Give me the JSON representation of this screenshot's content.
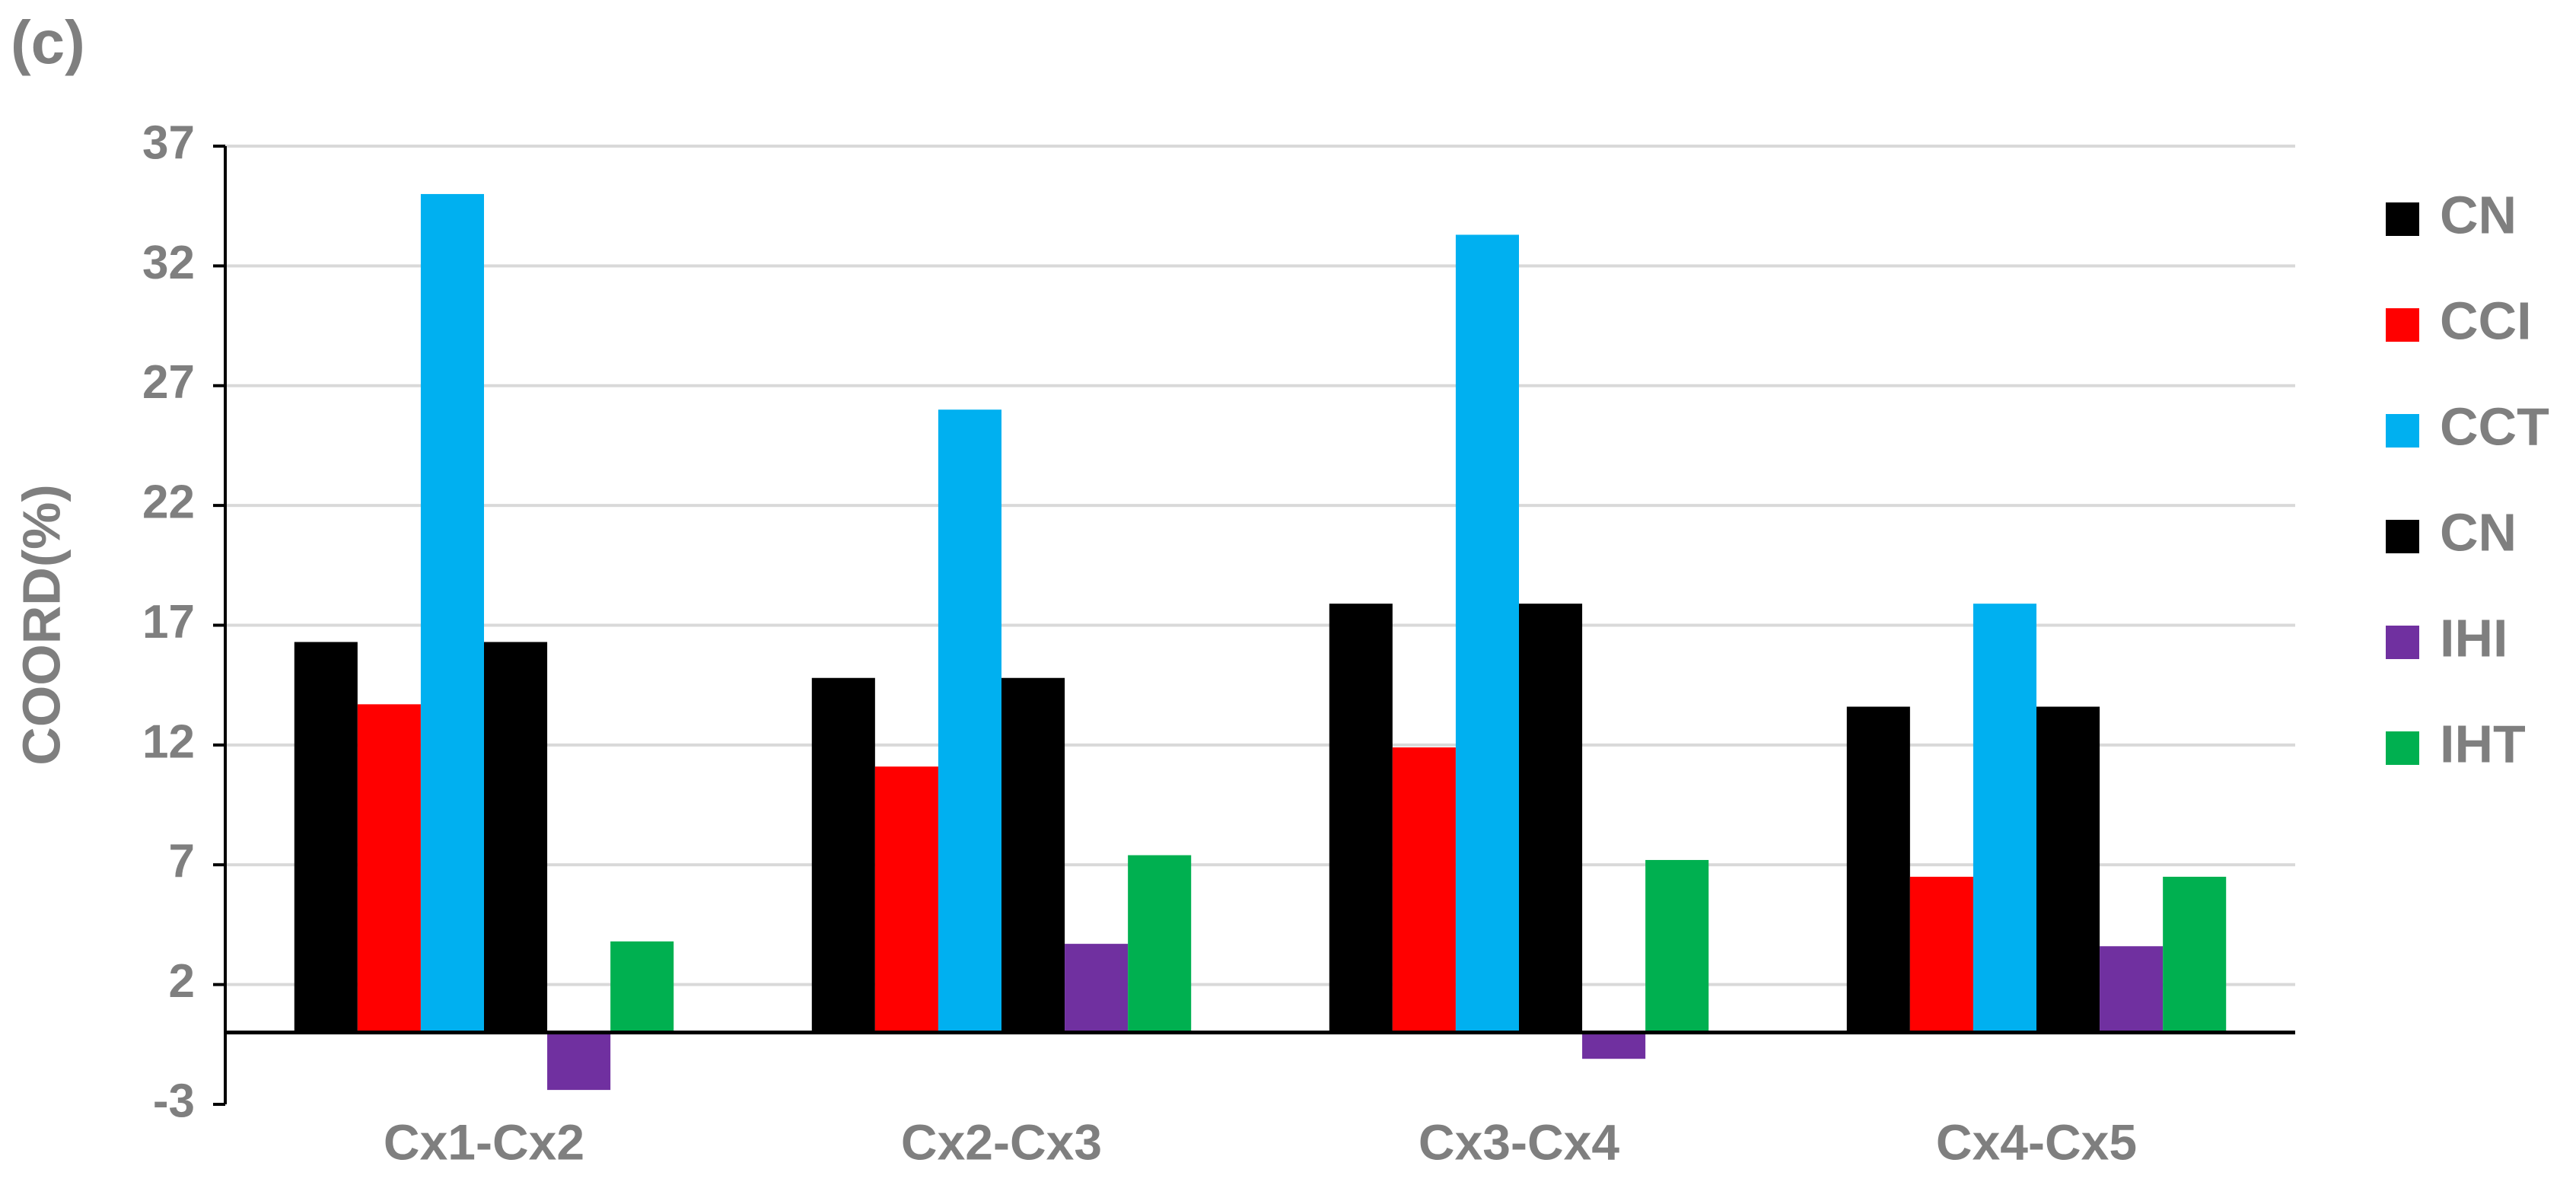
{
  "chart_data": {
    "type": "bar",
    "panel_label": "(c)",
    "y_label": "COORD(%)",
    "categories": [
      "Cx1-Cx2",
      "Cx2-Cx3",
      "Cx3-Cx4",
      "Cx4-Cx5"
    ],
    "series": [
      {
        "name": "CN",
        "color": "#000000",
        "values": [
          16.3,
          14.8,
          17.9,
          13.6
        ]
      },
      {
        "name": "CCI",
        "color": "#ff0000",
        "values": [
          13.7,
          11.1,
          11.9,
          6.5
        ]
      },
      {
        "name": "CCT",
        "color": "#00b0f0",
        "values": [
          35.0,
          26.0,
          33.3,
          17.9
        ]
      },
      {
        "name": "CN",
        "color": "#000000",
        "values": [
          16.3,
          14.8,
          17.9,
          13.6
        ]
      },
      {
        "name": "IHI",
        "color": "#7030a0",
        "values": [
          -2.4,
          3.7,
          -1.1,
          3.6
        ]
      },
      {
        "name": "IHT",
        "color": "#00b050",
        "values": [
          3.8,
          7.4,
          7.2,
          6.5
        ]
      }
    ],
    "ylim": [
      -3,
      37
    ],
    "yticks": [
      -3,
      2,
      7,
      12,
      17,
      22,
      27,
      32,
      37
    ],
    "grid": true,
    "legend": "right"
  }
}
